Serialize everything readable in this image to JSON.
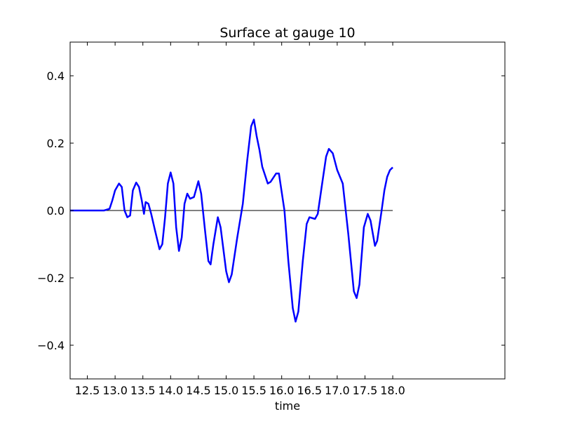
{
  "chart_data": {
    "type": "line",
    "title": "Surface at gauge 10",
    "x_label": "time",
    "xlim": [
      12.19,
      20.02
    ],
    "ylim": [
      -0.5,
      0.5
    ],
    "xticks": [
      12.5,
      {
        "value": 13,
        "label": "13.0"
      },
      13.5,
      {
        "value": 14,
        "label": "14.0"
      },
      14.5,
      {
        "value": 15,
        "label": "15.0"
      },
      15.5,
      {
        "value": 16,
        "label": "16.0"
      },
      16.5,
      {
        "value": 17,
        "label": "17.0"
      },
      17.5,
      {
        "value": 18,
        "label": "18.0"
      }
    ],
    "yticks": [
      {
        "value": -0.4,
        "label": "−0.4"
      },
      {
        "value": -0.2,
        "label": "−0.2"
      },
      {
        "value": 0,
        "label": "0.0"
      },
      0.2,
      0.4
    ],
    "series": [
      {
        "color": "#000000",
        "x": [
          12.19,
          18.0
        ],
        "values": [
          0,
          0
        ]
      },
      {
        "color": "#0000ff",
        "x": [
          12.19,
          12.8,
          12.9,
          12.95,
          13.0,
          13.07,
          13.12,
          13.17,
          13.22,
          13.27,
          13.32,
          13.38,
          13.43,
          13.48,
          13.52,
          13.55,
          13.6,
          13.65,
          13.72,
          13.8,
          13.85,
          13.9,
          13.95,
          14.0,
          14.05,
          14.1,
          14.15,
          14.2,
          14.25,
          14.3,
          14.35,
          14.42,
          14.5,
          14.55,
          14.62,
          14.68,
          14.72,
          14.77,
          14.85,
          14.9,
          15.0,
          15.05,
          15.1,
          15.2,
          15.3,
          15.38,
          15.45,
          15.5,
          15.55,
          15.6,
          15.65,
          15.75,
          15.8,
          15.9,
          15.95,
          16.05,
          16.12,
          16.2,
          16.25,
          16.3,
          16.38,
          16.45,
          16.5,
          16.6,
          16.65,
          16.72,
          16.8,
          16.85,
          16.92,
          17.0,
          17.05,
          17.1,
          17.2,
          17.3,
          17.35,
          17.4,
          17.48,
          17.55,
          17.6,
          17.68,
          17.72,
          17.8,
          17.85,
          17.9,
          17.95,
          18.0
        ],
        "values": [
          0,
          0,
          0.005,
          0.03,
          0.06,
          0.08,
          0.07,
          0.0,
          -0.02,
          -0.015,
          0.06,
          0.083,
          0.07,
          0.03,
          -0.01,
          0.025,
          0.02,
          -0.01,
          -0.06,
          -0.115,
          -0.1,
          -0.02,
          0.08,
          0.113,
          0.08,
          -0.05,
          -0.12,
          -0.08,
          0.02,
          0.05,
          0.035,
          0.04,
          0.087,
          0.05,
          -0.06,
          -0.15,
          -0.16,
          -0.1,
          -0.02,
          -0.05,
          -0.18,
          -0.213,
          -0.19,
          -0.08,
          0.02,
          0.15,
          0.25,
          0.27,
          0.22,
          0.18,
          0.13,
          0.08,
          0.085,
          0.11,
          0.11,
          0.0,
          -0.15,
          -0.29,
          -0.33,
          -0.3,
          -0.15,
          -0.04,
          -0.02,
          -0.025,
          -0.01,
          0.07,
          0.16,
          0.183,
          0.17,
          0.12,
          0.1,
          0.08,
          -0.07,
          -0.24,
          -0.26,
          -0.22,
          -0.05,
          -0.01,
          -0.03,
          -0.105,
          -0.09,
          0.0,
          0.06,
          0.1,
          0.12,
          0.128
        ]
      }
    ]
  }
}
